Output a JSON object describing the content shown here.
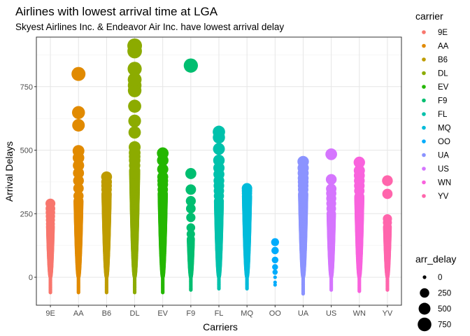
{
  "chart_data": {
    "type": "scatter",
    "title": "Airlines with lowest arrival time at LGA",
    "subtitle": "Skyest Airlines Inc. & Endeavor Air Inc. have lowest arrival delay",
    "xlabel": "Carriers",
    "ylabel": "Arrival Delays",
    "categories": [
      "9E",
      "AA",
      "B6",
      "DL",
      "EV",
      "F9",
      "FL",
      "MQ",
      "OO",
      "UA",
      "US",
      "WN",
      "YV"
    ],
    "y_ticks": [
      0,
      250,
      500,
      750
    ],
    "ylim": [
      -110,
      945
    ],
    "grid": true,
    "colors": [
      "#F8766D",
      "#E18A00",
      "#BE9C00",
      "#8CAB00",
      "#24B700",
      "#00BE70",
      "#00C1AB",
      "#00BBDA",
      "#00ACFC",
      "#8B93FF",
      "#D575FE",
      "#F962DD",
      "#FF65AC"
    ],
    "series": [
      {
        "carrier": "9E",
        "min": -60,
        "dense_max": 200,
        "outliers": [
          210,
          225,
          240,
          255,
          270,
          290
        ]
      },
      {
        "carrier": "AA",
        "min": -60,
        "dense_max": 300,
        "outliers": [
          320,
          350,
          380,
          410,
          440,
          470,
          497,
          598,
          648,
          800
        ]
      },
      {
        "carrier": "B6",
        "min": -60,
        "dense_max": 330,
        "outliers": [
          345,
          360,
          375,
          395
        ]
      },
      {
        "carrier": "DL",
        "min": -60,
        "dense_max": 420,
        "outliers": [
          440,
          460,
          475,
          490,
          512,
          570,
          615,
          673,
          735,
          755,
          778,
          820,
          890,
          911
        ]
      },
      {
        "carrier": "EV",
        "min": -60,
        "dense_max": 330,
        "outliers": [
          345,
          365,
          380,
          395,
          425,
          460,
          488
        ]
      },
      {
        "carrier": "F9",
        "min": -50,
        "dense_max": 150,
        "outliers": [
          170,
          195,
          235,
          270,
          300,
          345,
          408,
          833
        ]
      },
      {
        "carrier": "FL",
        "min": -45,
        "dense_max": 300,
        "outliers": [
          320,
          340,
          360,
          380,
          405,
          430,
          460,
          505,
          550,
          572
        ]
      },
      {
        "carrier": "MQ",
        "min": -45,
        "dense_max": 320,
        "outliers": [
          330,
          340,
          350
        ]
      },
      {
        "carrier": "OO",
        "min": -30,
        "dense_max": -30,
        "outliers": [
          -20,
          0,
          20,
          40,
          68,
          105,
          138
        ]
      },
      {
        "carrier": "UA",
        "min": -65,
        "dense_max": 330,
        "outliers": [
          345,
          360,
          375,
          390,
          410,
          430,
          455
        ]
      },
      {
        "carrier": "US",
        "min": -50,
        "dense_max": 250,
        "outliers": [
          270,
          290,
          310,
          330,
          348,
          385,
          484
        ]
      },
      {
        "carrier": "WN",
        "min": -55,
        "dense_max": 320,
        "outliers": [
          340,
          360,
          380,
          400,
          420,
          452
        ]
      },
      {
        "carrier": "YV",
        "min": -50,
        "dense_max": 200,
        "outliers": [
          215,
          230,
          328,
          380
        ]
      }
    ],
    "legend": {
      "position": "right",
      "color_title": "carrier",
      "color_entries": [
        "9E",
        "AA",
        "B6",
        "DL",
        "EV",
        "F9",
        "FL",
        "MQ",
        "OO",
        "UA",
        "US",
        "WN",
        "YV"
      ],
      "size_title": "arr_delay",
      "size_entries": [
        0,
        250,
        500,
        750
      ]
    }
  }
}
